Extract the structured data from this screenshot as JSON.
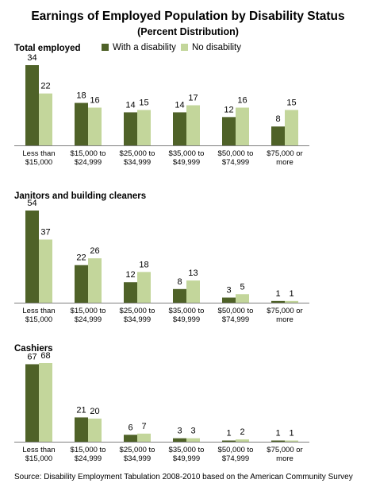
{
  "title": "Earnings of Employed Population by Disability Status",
  "subtitle": "(Percent Distribution)",
  "source": "Source: Disability Employment Tabulation 2008-2010 based on the American Community Survey",
  "colors": {
    "with_disability": "#4f6228",
    "no_disability": "#c3d69b",
    "axis": "#7f7f7f"
  },
  "legend": [
    {
      "label": "With a disability",
      "color": "#4f6228"
    },
    {
      "label": "No disability",
      "color": "#c3d69b"
    }
  ],
  "chart_data": [
    {
      "type": "bar",
      "title": "Total employed",
      "categories": [
        [
          "Less than",
          "$15,000"
        ],
        [
          "$15,000 to",
          "$24,999"
        ],
        [
          "$25,000 to",
          "$34,999"
        ],
        [
          "$35,000 to",
          "$49,999"
        ],
        [
          "$50,000 to",
          "$74,999"
        ],
        [
          "$75,000 or",
          "more"
        ]
      ],
      "series": [
        {
          "name": "With a disability",
          "values": [
            34,
            18,
            14,
            14,
            12,
            8
          ]
        },
        {
          "name": "No disability",
          "values": [
            22,
            16,
            15,
            17,
            16,
            15
          ]
        }
      ],
      "ylim": [
        0,
        34
      ],
      "grid": false
    },
    {
      "type": "bar",
      "title": "Janitors and building cleaners",
      "categories": [
        [
          "Less than",
          "$15,000"
        ],
        [
          "$15,000 to",
          "$24,999"
        ],
        [
          "$25,000 to",
          "$34,999"
        ],
        [
          "$35,000 to",
          "$49,999"
        ],
        [
          "$50,000 to",
          "$74,999"
        ],
        [
          "$75,000 or",
          "more"
        ]
      ],
      "series": [
        {
          "name": "With a disability",
          "values": [
            54,
            22,
            12,
            8,
            3,
            1
          ]
        },
        {
          "name": "No disability",
          "values": [
            37,
            26,
            18,
            13,
            5,
            1
          ]
        }
      ],
      "ylim": [
        0,
        54
      ],
      "grid": false
    },
    {
      "type": "bar",
      "title": "Cashiers",
      "categories": [
        [
          "Less than",
          "$15,000"
        ],
        [
          "$15,000 to",
          "$24,999"
        ],
        [
          "$25,000 to",
          "$34,999"
        ],
        [
          "$35,000 to",
          "$49,999"
        ],
        [
          "$50,000 to",
          "$74,999"
        ],
        [
          "$75,000 or",
          "more"
        ]
      ],
      "series": [
        {
          "name": "With a disability",
          "values": [
            67,
            21,
            6,
            3,
            1,
            1
          ]
        },
        {
          "name": "No disability",
          "values": [
            68,
            20,
            7,
            3,
            2,
            1
          ]
        }
      ],
      "ylim": [
        0,
        68
      ],
      "grid": false
    }
  ]
}
